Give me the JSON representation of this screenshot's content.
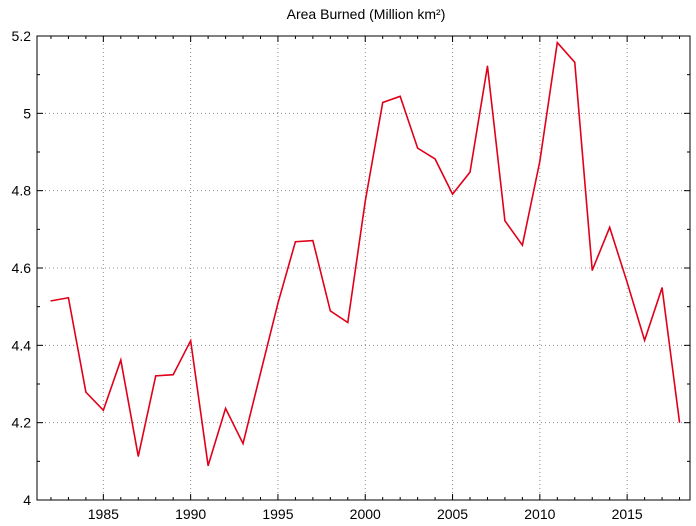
{
  "chart_data": {
    "type": "line",
    "title": "Area Burned (Million km²)",
    "xlabel": "",
    "ylabel": "",
    "xlim": [
      1981.2,
      2018.6
    ],
    "ylim": [
      4.0,
      5.2
    ],
    "grid": true,
    "x_ticks": [
      1985,
      1990,
      1995,
      2000,
      2005,
      2010,
      2015
    ],
    "y_ticks": [
      4.0,
      4.2,
      4.4,
      4.6,
      4.8,
      5.0,
      5.2
    ],
    "y_tick_labels": [
      "4",
      "4.2",
      "4.4",
      "4.6",
      "4.8",
      "5",
      "5.2"
    ],
    "x_tick_labels": [
      "1985",
      "1990",
      "1995",
      "2000",
      "2005",
      "2010",
      "2015"
    ],
    "series": [
      {
        "color": "#e0001a",
        "x": [
          1982,
          1983,
          1984,
          1985,
          1986,
          1987,
          1988,
          1989,
          1990,
          1991,
          1992,
          1993,
          1994,
          1995,
          1996,
          1997,
          1998,
          1999,
          2000,
          2001,
          2002,
          2003,
          2004,
          2005,
          2006,
          2007,
          2008,
          2009,
          2010,
          2011,
          2012,
          2013,
          2014,
          2015,
          2016,
          2017,
          2018
        ],
        "values": [
          4.515,
          4.523,
          4.279,
          4.232,
          4.362,
          4.113,
          4.321,
          4.324,
          4.412,
          4.089,
          4.237,
          4.146,
          4.328,
          4.509,
          4.668,
          4.671,
          4.489,
          4.459,
          4.773,
          5.028,
          5.044,
          4.91,
          4.882,
          4.791,
          4.848,
          5.122,
          4.722,
          4.659,
          4.876,
          5.183,
          5.132,
          4.594,
          4.705,
          4.563,
          4.413,
          4.549,
          4.201
        ]
      }
    ]
  }
}
